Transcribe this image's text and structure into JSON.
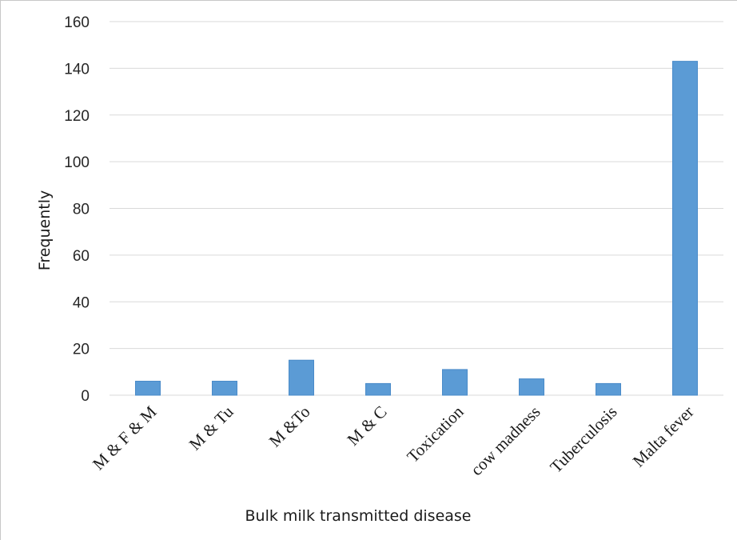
{
  "chart_data": {
    "type": "bar",
    "title": "",
    "xlabel": "Bulk milk transmitted disease",
    "ylabel": "Frequently",
    "categories": [
      "M & F & M",
      "M & Tu",
      "M &To",
      "M & C",
      "Toxication",
      "cow madness",
      "Tuberculosis",
      "Malta fever"
    ],
    "values": [
      6,
      6,
      15,
      5,
      11,
      7,
      5,
      143
    ],
    "ylim": [
      0,
      160
    ],
    "yticks": [
      0,
      20,
      40,
      60,
      80,
      100,
      120,
      140,
      160
    ],
    "grid": true,
    "legend": "none",
    "bar_color": "#5b9bd5"
  }
}
